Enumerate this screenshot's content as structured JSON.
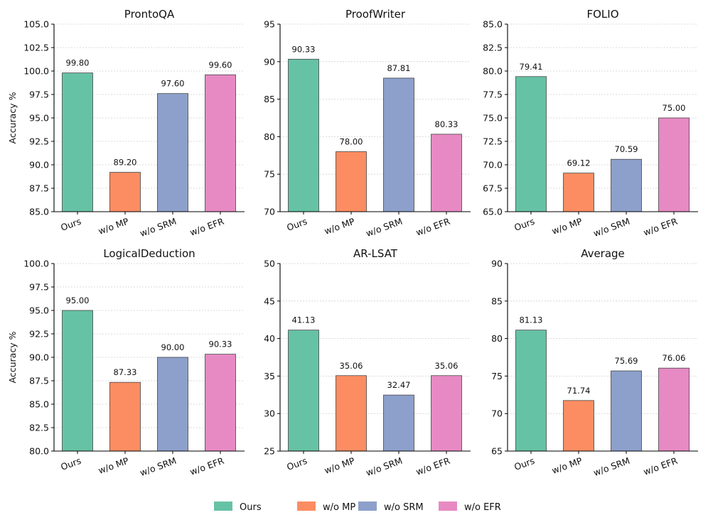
{
  "chart_data": {
    "type": "bar",
    "categories": [
      "Ours",
      "w/o MP",
      "w/o SRM",
      "w/o EFR"
    ],
    "colors": [
      "#66c2a5",
      "#fc8d62",
      "#8da0cb",
      "#e78ac3"
    ],
    "ylabel": "Accuracy %",
    "legend": {
      "position": "bottom-center",
      "entries": [
        "Ours",
        "w/o MP",
        "w/o SRM",
        "w/o EFR"
      ]
    },
    "panels": [
      {
        "title": "ProntoQA",
        "values": [
          99.8,
          89.2,
          97.6,
          99.6
        ],
        "value_labels": [
          "99.80",
          "89.20",
          "97.60",
          "99.60"
        ],
        "ylim": [
          85,
          105
        ],
        "yticks": [
          "85.0",
          "87.5",
          "90.0",
          "92.5",
          "95.0",
          "97.5",
          "100.0",
          "102.5",
          "105.0"
        ],
        "show_ylabel": true
      },
      {
        "title": "ProofWriter",
        "values": [
          90.33,
          78.0,
          87.81,
          80.33
        ],
        "value_labels": [
          "90.33",
          "78.00",
          "87.81",
          "80.33"
        ],
        "ylim": [
          70,
          95
        ],
        "yticks": [
          "70",
          "75",
          "80",
          "85",
          "90",
          "95"
        ],
        "show_ylabel": false
      },
      {
        "title": "FOLIO",
        "values": [
          79.41,
          69.12,
          70.59,
          75.0
        ],
        "value_labels": [
          "79.41",
          "69.12",
          "70.59",
          "75.00"
        ],
        "ylim": [
          65,
          85
        ],
        "yticks": [
          "65.0",
          "67.5",
          "70.0",
          "72.5",
          "75.0",
          "77.5",
          "80.0",
          "82.5",
          "85.0"
        ],
        "show_ylabel": false
      },
      {
        "title": "LogicalDeduction",
        "values": [
          95.0,
          87.33,
          90.0,
          90.33
        ],
        "value_labels": [
          "95.00",
          "87.33",
          "90.00",
          "90.33"
        ],
        "ylim": [
          80,
          100
        ],
        "yticks": [
          "80.0",
          "82.5",
          "85.0",
          "87.5",
          "90.0",
          "92.5",
          "95.0",
          "97.5",
          "100.0"
        ],
        "show_ylabel": true
      },
      {
        "title": "AR-LSAT",
        "values": [
          41.13,
          35.06,
          32.47,
          35.06
        ],
        "value_labels": [
          "41.13",
          "35.06",
          "32.47",
          "35.06"
        ],
        "ylim": [
          25,
          50
        ],
        "yticks": [
          "25",
          "30",
          "35",
          "40",
          "45",
          "50"
        ],
        "show_ylabel": false
      },
      {
        "title": "Average",
        "values": [
          81.13,
          71.74,
          75.69,
          76.06
        ],
        "value_labels": [
          "81.13",
          "71.74",
          "75.69",
          "76.06"
        ],
        "ylim": [
          65,
          90
        ],
        "yticks": [
          "65",
          "70",
          "75",
          "80",
          "85",
          "90"
        ],
        "show_ylabel": false
      }
    ]
  }
}
